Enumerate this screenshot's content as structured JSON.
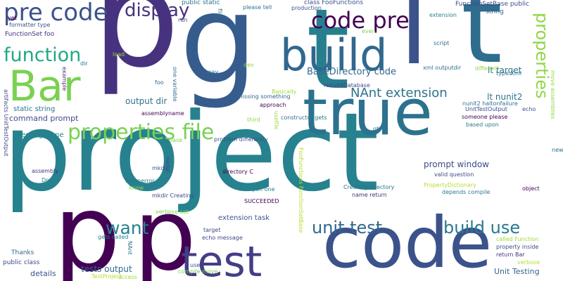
{
  "words": [
    {
      "text": "p",
      "color": "#46327e"
    },
    {
      "text": "g",
      "color": "#365c8d"
    },
    {
      "text": "t",
      "color": "#277f8e"
    },
    {
      "text": "l",
      "color": "#3b528b"
    },
    {
      "text": "t",
      "color": "#2f6c8e"
    },
    {
      "text": "project",
      "color": "#26828e"
    },
    {
      "text": "code",
      "color": "#3b528b"
    },
    {
      "text": "p",
      "color": "#440154"
    },
    {
      "text": "p",
      "color": "#440154"
    },
    {
      "text": "true",
      "color": "#2c728e"
    },
    {
      "text": "test",
      "color": "#433e85"
    },
    {
      "text": "build",
      "color": "#31688e"
    },
    {
      "text": "Bar",
      "color": "#7ad151"
    },
    {
      "text": "pre code",
      "color": "#3b528b"
    },
    {
      "text": "code pre",
      "color": "#440154"
    },
    {
      "text": "properties file",
      "color": "#7ad151"
    },
    {
      "text": "display",
      "color": "#46327e"
    },
    {
      "text": "function",
      "color": "#22a884"
    },
    {
      "text": "properties",
      "color": "#8fd744"
    },
    {
      "text": "want",
      "color": "#26828e"
    },
    {
      "text": "unit test",
      "color": "#31688e"
    },
    {
      "text": "build use",
      "color": "#2a788e"
    },
    {
      "text": "NAnt extension",
      "color": "#2c728e"
    },
    {
      "text": "BaseDirectory code",
      "color": "#31688e"
    },
    {
      "text": "lt target",
      "color": "#2c728e"
    },
    {
      "text": "lt nunit2",
      "color": "#2c728e"
    },
    {
      "text": "prompt window",
      "color": "#3e4989"
    },
    {
      "text": "tests output",
      "color": "#31688e"
    },
    {
      "text": "output dir",
      "color": "#2c728e"
    },
    {
      "text": "command prompt",
      "color": "#3e4989"
    },
    {
      "text": "Testing Done",
      "color": "#26828e"
    },
    {
      "text": "static string",
      "color": "#2c728e"
    },
    {
      "text": "Unit Testing",
      "color": "#31688e"
    },
    {
      "text": "extension task",
      "color": "#3b528b"
    },
    {
      "text": "details",
      "color": "#3b528b"
    },
    {
      "text": "public class",
      "color": "#3e4989"
    },
    {
      "text": "Thanks",
      "color": "#31688e"
    },
    {
      "text": "FunctionSet foo",
      "color": "#46327e"
    },
    {
      "text": "formatter type",
      "color": "#3b528b"
    },
    {
      "text": "yet",
      "color": "#440154"
    },
    {
      "text": "class FooFunctions",
      "color": "#3b528b"
    },
    {
      "text": "FunctionSetBase public",
      "color": "#3e4989"
    },
    {
      "text": "string",
      "color": "#31688e"
    },
    {
      "text": "public static",
      "color": "#2c728e"
    },
    {
      "text": "please tell",
      "color": "#2c728e"
    },
    {
      "text": "production",
      "color": "#3b528b"
    },
    {
      "text": "run",
      "color": "#3b528b"
    },
    {
      "text": "file",
      "color": "#2c728e"
    },
    {
      "text": "extension",
      "color": "#26828e"
    },
    {
      "text": "even",
      "color": "#7ad151"
    },
    {
      "text": "script",
      "color": "#31688e"
    },
    {
      "text": "load",
      "color": "#a0da39"
    },
    {
      "text": "dev",
      "color": "#8fd744"
    },
    {
      "text": "xml outputdir",
      "color": "#2c728e"
    },
    {
      "text": "different",
      "color": "#8fd744"
    },
    {
      "text": "type Xml",
      "color": "#2c728e"
    },
    {
      "text": "move assemblies",
      "color": "#8fd744"
    },
    {
      "text": "way",
      "color": "#2c728e"
    },
    {
      "text": "rebuildDatabase",
      "color": "#3e4989"
    },
    {
      "text": "dir",
      "color": "#2c728e"
    },
    {
      "text": "example",
      "color": "#46327e"
    },
    {
      "text": "foo",
      "color": "#31688e"
    },
    {
      "text": "one variable",
      "color": "#31688e"
    },
    {
      "text": "missing something",
      "color": "#31688e"
    },
    {
      "text": "Basically",
      "color": "#a0da39"
    },
    {
      "text": "approach",
      "color": "#440154"
    },
    {
      "text": "nunit2 haltonfailure",
      "color": "#2c728e"
    },
    {
      "text": "UnitTestOutput",
      "color": "#3e4989"
    },
    {
      "text": "echo",
      "color": "#3b528b"
    },
    {
      "text": "someone please",
      "color": "#440154"
    },
    {
      "text": "based upon",
      "color": "#2a788e"
    },
    {
      "text": "gt",
      "color": "#2c728e"
    },
    {
      "text": "third",
      "color": "#8fd744"
    },
    {
      "text": "problem differently",
      "color": "#3b528b"
    },
    {
      "text": "assemblyname",
      "color": "#440154"
    },
    {
      "text": "usefile",
      "color": "#a0da39"
    },
    {
      "text": "artifacts UnitTestOutput",
      "color": "#3e4989"
    },
    {
      "text": "base",
      "color": "#7ad151"
    },
    {
      "text": "constructor gets",
      "color": "#2c728e"
    },
    {
      "text": "FooFunctions FunctionSetBase",
      "color": "#b5de2b"
    },
    {
      "text": "new",
      "color": "#2c728e"
    },
    {
      "text": "mkdir",
      "color": "#3b528b"
    },
    {
      "text": "name",
      "color": "#3e4989"
    },
    {
      "text": "directory C",
      "color": "#440154"
    },
    {
      "text": "assembly",
      "color": "#46327e"
    },
    {
      "text": "valid question",
      "color": "#3e4989"
    },
    {
      "text": "Done",
      "color": "#26828e"
    },
    {
      "text": "failonerror",
      "color": "#2c728e"
    },
    {
      "text": "know",
      "color": "#8fd744"
    },
    {
      "text": "mkdir Creating",
      "color": "#3e4989"
    },
    {
      "text": "upon one",
      "color": "#26828e"
    },
    {
      "text": "SUCCEEDED",
      "color": "#440154"
    },
    {
      "text": "Creating directory",
      "color": "#2c728e"
    },
    {
      "text": "name return",
      "color": "#46327e"
    },
    {
      "text": "PropertyDictionary",
      "color": "#b5de2b"
    },
    {
      "text": "depends compile",
      "color": "#2a788e"
    },
    {
      "text": "object",
      "color": "#440154"
    },
    {
      "text": "verbose set",
      "color": "#7ad151"
    },
    {
      "text": "target",
      "color": "#3e4989"
    },
    {
      "text": "gets called",
      "color": "#26828e"
    },
    {
      "text": "echo message",
      "color": "#3e4989"
    },
    {
      "text": "NAnt",
      "color": "#2c728e"
    },
    {
      "text": "use",
      "color": "#3b528b"
    },
    {
      "text": "compile move",
      "color": "#7ad151"
    },
    {
      "text": "TestProject",
      "color": "#b5de2b"
    },
    {
      "text": "access",
      "color": "#a0da39"
    },
    {
      "text": "called Function",
      "color": "#a0da39"
    },
    {
      "text": "property inside",
      "color": "#3e4989"
    },
    {
      "text": "return Bar",
      "color": "#46327e"
    },
    {
      "text": "verbose",
      "color": "#b5de2b"
    }
  ]
}
